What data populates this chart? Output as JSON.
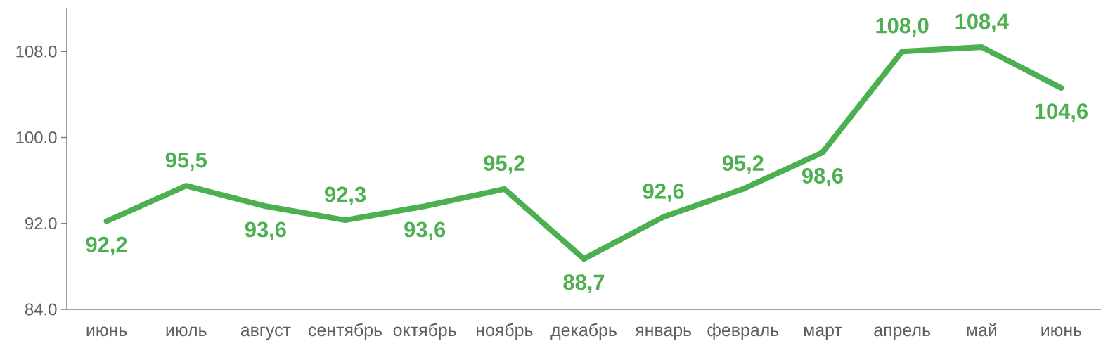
{
  "chart_data": {
    "type": "line",
    "categories": [
      "июнь",
      "июль",
      "август",
      "сентябрь",
      "октябрь",
      "ноябрь",
      "декабрь",
      "январь",
      "февраль",
      "март",
      "апрель",
      "май",
      "июнь"
    ],
    "series": [
      {
        "color": "#4caf50",
        "values": [
          92.2,
          95.5,
          93.6,
          92.3,
          93.6,
          95.2,
          88.7,
          92.6,
          95.2,
          98.6,
          108.0,
          108.4,
          104.6
        ],
        "value_labels": [
          "92,2",
          "95,5",
          "93,6",
          "92,3",
          "93,6",
          "95,2",
          "88,7",
          "92,6",
          "95,2",
          "98,6",
          "108,0",
          "108,4",
          "104,6"
        ]
      }
    ],
    "ylim": [
      84,
      112
    ],
    "yticks": [
      {
        "value": 84,
        "label": "84.0"
      },
      {
        "value": 92,
        "label": "92.0"
      },
      {
        "value": 100,
        "label": "100.0"
      },
      {
        "value": 108,
        "label": "108.0"
      }
    ],
    "line_style": "solid",
    "marker": "none"
  }
}
